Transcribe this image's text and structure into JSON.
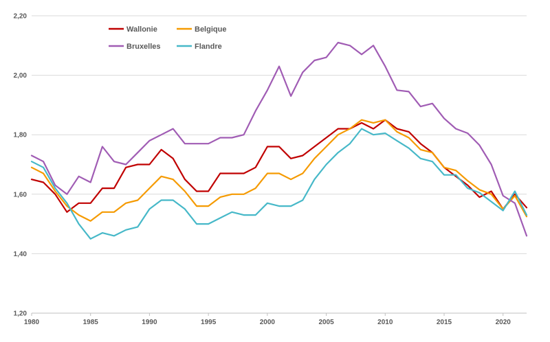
{
  "chart_data": {
    "type": "line",
    "title": "",
    "xlabel": "",
    "ylabel": "",
    "xlim": [
      1980,
      2022
    ],
    "ylim": [
      1.2,
      2.2
    ],
    "grid": "horizontal",
    "legend_position": "top-left",
    "x": [
      1980,
      1981,
      1982,
      1983,
      1984,
      1985,
      1986,
      1987,
      1988,
      1989,
      1990,
      1991,
      1992,
      1993,
      1994,
      1995,
      1996,
      1997,
      1998,
      1999,
      2000,
      2001,
      2002,
      2003,
      2004,
      2005,
      2006,
      2007,
      2008,
      2009,
      2010,
      2011,
      2012,
      2013,
      2014,
      2015,
      2016,
      2017,
      2018,
      2019,
      2020,
      2021,
      2022
    ],
    "x_ticks": [
      {
        "value": 1980,
        "label": "1980"
      },
      {
        "value": 1985,
        "label": "1985"
      },
      {
        "value": 1990,
        "label": "1990"
      },
      {
        "value": 1995,
        "label": "1995"
      },
      {
        "value": 2000,
        "label": "2000"
      },
      {
        "value": 2005,
        "label": "2005"
      },
      {
        "value": 2010,
        "label": "2010"
      },
      {
        "value": 2015,
        "label": "2015"
      },
      {
        "value": 2020,
        "label": "2020"
      }
    ],
    "y_ticks": [
      {
        "value": 1.2,
        "label": "1,20"
      },
      {
        "value": 1.4,
        "label": "1,40"
      },
      {
        "value": 1.6,
        "label": "1,60"
      },
      {
        "value": 1.8,
        "label": "1,80"
      },
      {
        "value": 2.0,
        "label": "2,00"
      },
      {
        "value": 2.2,
        "label": "2,20"
      }
    ],
    "series": [
      {
        "name": "Wallonie",
        "color": "#c00000",
        "values": [
          1.65,
          1.64,
          1.6,
          1.54,
          1.57,
          1.57,
          1.62,
          1.62,
          1.69,
          1.7,
          1.7,
          1.75,
          1.72,
          1.65,
          1.61,
          1.61,
          1.67,
          1.67,
          1.67,
          1.69,
          1.76,
          1.76,
          1.72,
          1.73,
          1.76,
          1.79,
          1.82,
          1.82,
          1.84,
          1.82,
          1.85,
          1.82,
          1.81,
          1.77,
          1.74,
          1.69,
          1.66,
          1.63,
          1.59,
          1.61,
          1.55,
          1.6,
          1.555
        ]
      },
      {
        "name": "Belgique",
        "color": "#f59a00",
        "values": [
          1.69,
          1.67,
          1.61,
          1.56,
          1.53,
          1.51,
          1.54,
          1.54,
          1.57,
          1.58,
          1.62,
          1.66,
          1.65,
          1.61,
          1.56,
          1.56,
          1.59,
          1.6,
          1.6,
          1.62,
          1.67,
          1.67,
          1.65,
          1.67,
          1.72,
          1.76,
          1.8,
          1.82,
          1.85,
          1.84,
          1.85,
          1.81,
          1.79,
          1.75,
          1.74,
          1.69,
          1.68,
          1.645,
          1.615,
          1.6,
          1.55,
          1.595,
          1.525
        ]
      },
      {
        "name": "Bruxelles",
        "color": "#a05cb4",
        "values": [
          1.73,
          1.71,
          1.63,
          1.6,
          1.66,
          1.64,
          1.76,
          1.71,
          1.7,
          1.74,
          1.78,
          1.8,
          1.82,
          1.77,
          1.77,
          1.77,
          1.79,
          1.79,
          1.8,
          1.88,
          1.95,
          2.03,
          1.93,
          2.01,
          2.05,
          2.06,
          2.11,
          2.1,
          2.07,
          2.1,
          2.03,
          1.95,
          1.945,
          1.895,
          1.905,
          1.855,
          1.82,
          1.805,
          1.765,
          1.7,
          1.595,
          1.57,
          1.46
        ]
      },
      {
        "name": "Flandre",
        "color": "#46b8c8",
        "values": [
          1.71,
          1.69,
          1.62,
          1.57,
          1.5,
          1.45,
          1.47,
          1.46,
          1.48,
          1.49,
          1.55,
          1.58,
          1.58,
          1.55,
          1.5,
          1.5,
          1.52,
          1.54,
          1.53,
          1.53,
          1.57,
          1.56,
          1.56,
          1.58,
          1.65,
          1.7,
          1.74,
          1.77,
          1.82,
          1.8,
          1.805,
          1.78,
          1.755,
          1.72,
          1.71,
          1.665,
          1.665,
          1.62,
          1.605,
          1.575,
          1.545,
          1.61,
          1.53
        ]
      }
    ]
  }
}
